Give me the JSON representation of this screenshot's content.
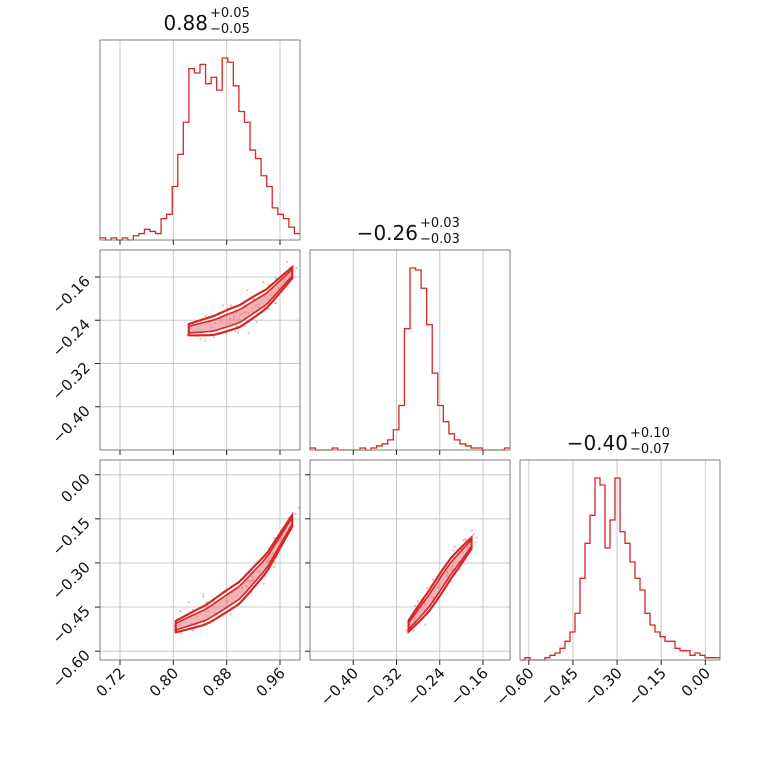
{
  "chart_data": {
    "type": "corner",
    "color": "#d62728",
    "titles": [
      {
        "value": "0.88",
        "plus": "+0.05",
        "minus": "−0.05"
      },
      {
        "value": "−0.26",
        "plus": "+0.03",
        "minus": "−0.03"
      },
      {
        "value": "−0.40",
        "plus": "+0.10",
        "minus": "−0.07"
      }
    ],
    "axes": {
      "p0": {
        "range": [
          0.69,
          0.99
        ],
        "ticks": [
          0.72,
          0.8,
          0.88,
          0.96
        ],
        "tick_labels": [
          "0.72",
          "0.80",
          "0.88",
          "0.96"
        ]
      },
      "p1": {
        "range": [
          -0.48,
          -0.11
        ],
        "ticks": [
          -0.4,
          -0.32,
          -0.24,
          -0.16
        ],
        "tick_labels": [
          "−0.40",
          "−0.32",
          "−0.24",
          "−0.16"
        ]
      },
      "p2": {
        "range": [
          -0.63,
          0.05
        ],
        "ticks": [
          -0.6,
          -0.45,
          -0.3,
          -0.15,
          0.0
        ],
        "tick_labels": [
          "−0.60",
          "−0.45",
          "−0.30",
          "−0.15",
          "0.00"
        ]
      }
    },
    "histograms": [
      {
        "param": "p0",
        "values": [
          1,
          0,
          1,
          0,
          1,
          0,
          2,
          3,
          5,
          4,
          3,
          10,
          12,
          25,
          40,
          55,
          80,
          78,
          82,
          73,
          76,
          70,
          85,
          83,
          72,
          60,
          55,
          42,
          38,
          30,
          25,
          15,
          12,
          10,
          6,
          3
        ]
      },
      {
        "param": "p1",
        "values": [
          1,
          0,
          0,
          0,
          1,
          0,
          0,
          0,
          0,
          1,
          0,
          1,
          2,
          3,
          5,
          10,
          22,
          60,
          90,
          89,
          80,
          62,
          38,
          22,
          14,
          8,
          5,
          3,
          2,
          1,
          1,
          0,
          0,
          0,
          0,
          1
        ]
      },
      {
        "param": "p2",
        "values": [
          0,
          1,
          0,
          0,
          0,
          1,
          2,
          3,
          5,
          8,
          12,
          20,
          35,
          50,
          62,
          78,
          75,
          48,
          60,
          78,
          55,
          50,
          42,
          35,
          30,
          20,
          15,
          12,
          10,
          8,
          8,
          5,
          4,
          4,
          2,
          3,
          2,
          1,
          1,
          1
        ]
      }
    ],
    "pairs": [
      {
        "x": "p0",
        "y": "p1",
        "trend": [
          [
            0.82,
            -0.258
          ],
          [
            0.86,
            -0.25
          ],
          [
            0.9,
            -0.232
          ],
          [
            0.94,
            -0.2
          ],
          [
            0.98,
            -0.15
          ]
        ]
      },
      {
        "x": "p0",
        "y": "p2",
        "trend": [
          [
            0.8,
            -0.52
          ],
          [
            0.85,
            -0.475
          ],
          [
            0.9,
            -0.4
          ],
          [
            0.94,
            -0.3
          ],
          [
            0.98,
            -0.15
          ]
        ]
      },
      {
        "x": "p1",
        "y": "p2",
        "trend": [
          [
            -0.3,
            -0.52
          ],
          [
            -0.26,
            -0.43
          ],
          [
            -0.22,
            -0.32
          ],
          [
            -0.18,
            -0.23
          ]
        ]
      }
    ],
    "grid": true
  }
}
